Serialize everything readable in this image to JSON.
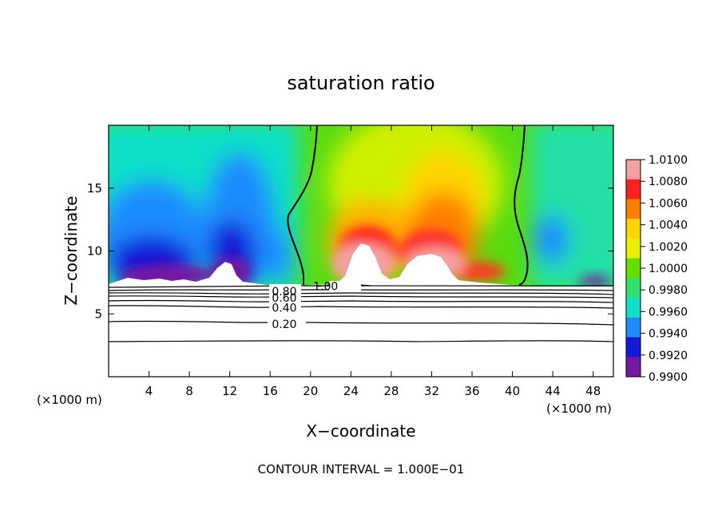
{
  "chart_data": {
    "type": "heatmap",
    "title": "saturation ratio",
    "xlabel": "X−coordinate",
    "ylabel": "Z−coordinate",
    "x_unit_left": "(×1000 m)",
    "x_unit_right": "(×1000 m)",
    "xlim": [
      0,
      50
    ],
    "ylim": [
      0,
      20
    ],
    "x_ticks": [
      4,
      8,
      12,
      16,
      20,
      24,
      28,
      32,
      36,
      40,
      44,
      48
    ],
    "x_tick_labels": [
      "4",
      "8",
      "12",
      "16",
      "20",
      "24",
      "28",
      "32",
      "36",
      "40",
      "44",
      "48"
    ],
    "y_ticks": [
      5,
      10,
      15
    ],
    "y_tick_labels": [
      "5",
      "10",
      "15"
    ],
    "colorbar": {
      "min": 0.99,
      "max": 1.01,
      "tick_labels": [
        "1.0100",
        "1.0080",
        "1.0060",
        "1.0040",
        "1.0020",
        "1.0000",
        "0.9980",
        "0.9960",
        "0.9940",
        "0.9920",
        "0.9900"
      ],
      "colors": [
        "#f2a0a0",
        "#ff2020",
        "#ff8000",
        "#ffd400",
        "#e8f000",
        "#64e000",
        "#30e070",
        "#10e0c8",
        "#1e8cff",
        "#1418d8",
        "#7818a0"
      ]
    },
    "shaded_region_zmin": 7.3,
    "contour_labels": [
      {
        "text": "1.00",
        "x": 21.5,
        "z": 7.2
      },
      {
        "text": "0.80",
        "x": 17.4,
        "z": 6.8
      },
      {
        "text": "0.60",
        "x": 17.4,
        "z": 6.3
      },
      {
        "text": "0.40",
        "x": 17.4,
        "z": 5.5
      },
      {
        "text": "0.20",
        "x": 17.4,
        "z": 4.2
      }
    ],
    "lower_contour_levels_z": [
      7.2,
      6.8,
      6.5,
      6.2,
      5.8,
      5.2,
      4.4,
      3.0
    ],
    "saturation_contour_left_x": [
      20.5,
      20.5,
      20.0,
      18.5,
      17.9,
      18.5,
      19.5,
      19.4
    ],
    "saturation_contour_left_z": [
      19.8,
      17.5,
      15.0,
      13.0,
      12.0,
      10.5,
      9.0,
      7.4
    ],
    "saturation_contour_right_x": [
      41.2,
      41.2,
      40.8,
      40.3,
      40.8,
      41.3,
      40.7
    ],
    "saturation_contour_right_z": [
      19.8,
      18.0,
      16.0,
      13.5,
      11.0,
      9.0,
      7.4
    ],
    "footer": "CONTOUR INTERVAL = 1.000E−01"
  }
}
